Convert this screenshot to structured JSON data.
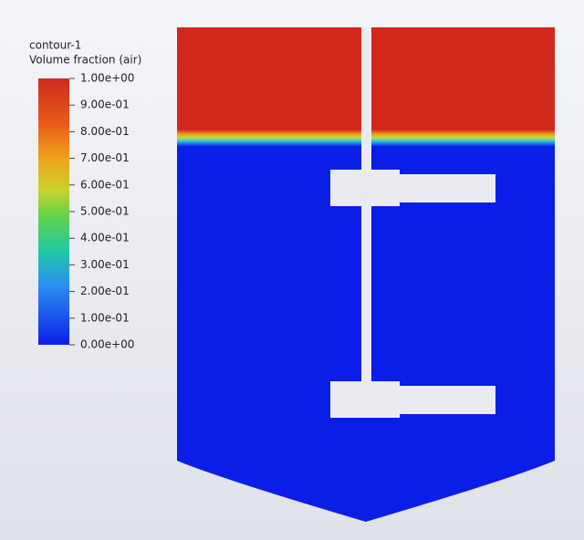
{
  "legend": {
    "title": "contour-1",
    "subtitle": "Volume fraction (air)",
    "ticks": [
      "1.00e+00",
      "9.00e-01",
      "8.00e-01",
      "7.00e-01",
      "6.00e-01",
      "5.00e-01",
      "4.00e-01",
      "3.00e-01",
      "2.00e-01",
      "1.00e-01",
      "0.00e+00"
    ]
  }
}
